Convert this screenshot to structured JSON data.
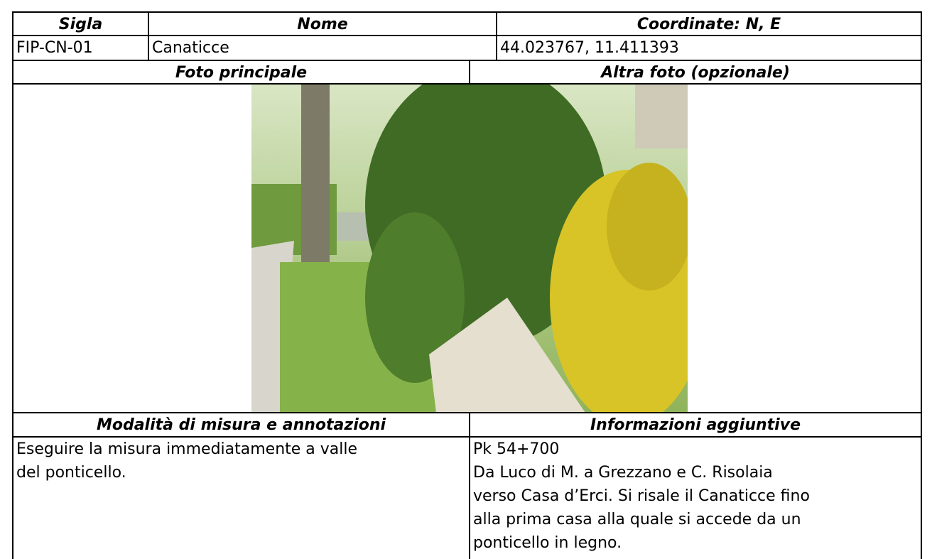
{
  "table": {
    "header": [
      "Sigla",
      "Nome",
      "Coordinate: N, E"
    ],
    "row": [
      "FIP-CN-01",
      "Canaticce",
      "44.023767, 11.411393"
    ],
    "photo_headers": [
      "Foto principale",
      "Altra foto (opzionale)"
    ],
    "notes_headers": [
      "Modalità di misura e annotazioni",
      "Informazioni aggiuntive"
    ],
    "notes": [
      "Eseguire la misura immediatamente a valle",
      "del ponticello."
    ],
    "info": [
      "Pk 54+700",
      "Da Luco di M. a Grezzano e C. Risolaia",
      "verso Casa d’Erci. Si risale il Canaticce fino",
      "alla prima casa alla quale si accede da un",
      "ponticello in legno."
    ]
  }
}
